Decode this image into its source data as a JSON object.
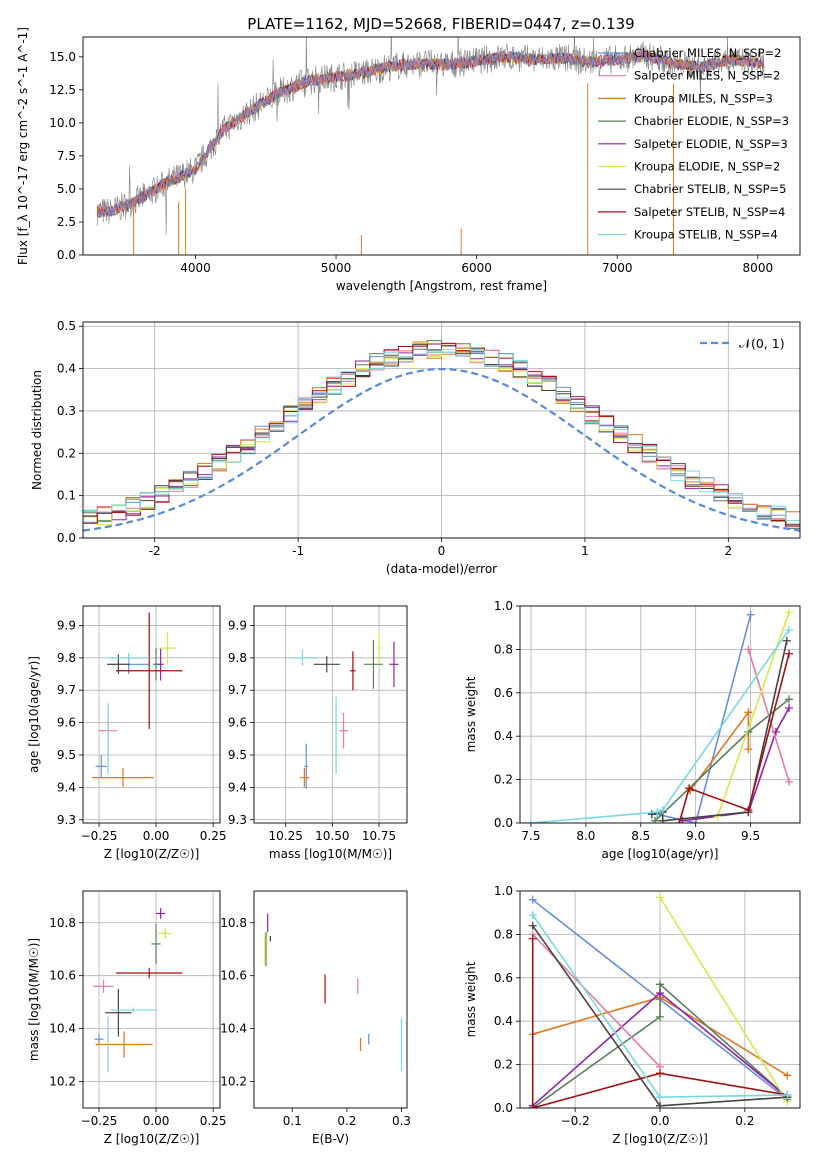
{
  "figure": {
    "title": "PLATE=1162, MJD=52668, FIBERID=0447, z=0.139"
  },
  "colors": [
    "#6a8fd6",
    "#e07820",
    "#5a7d5a",
    "#8e24aa",
    "#e879a8",
    "#d4e84a",
    "#444444",
    "#a01010",
    "#78d8e0"
  ],
  "chart_data": [
    {
      "id": "spectrum",
      "type": "line",
      "xlabel": "wavelength [Angstrom, rest frame]",
      "ylabel": "Flux [f_λ 10^-17 erg cm^-2 s^-1 A^-1]",
      "xlim": [
        3200,
        8300
      ],
      "ylim": [
        0,
        16.5
      ],
      "xticks": [
        4000,
        5000,
        6000,
        7000,
        8000
      ],
      "yticks": [
        0.0,
        2.5,
        5.0,
        7.5,
        10.0,
        12.5,
        15.0
      ],
      "ytick_labels": [
        "0.0",
        "2.5",
        "5.0",
        "7.5",
        "10.0",
        "12.5",
        "15.0"
      ],
      "grid": false,
      "legend": "top-right",
      "data_color": "#808080",
      "envelope": {
        "x": [
          3300,
          3400,
          3600,
          3800,
          4000,
          4200,
          4400,
          4600,
          4800,
          5000,
          5200,
          5400,
          5600,
          5800,
          6000,
          6200,
          6400,
          6600,
          6800,
          7000,
          7200,
          7400,
          7600,
          7800,
          8000,
          8050
        ],
        "y": [
          3.3,
          3.3,
          4.2,
          5.5,
          6.5,
          9.5,
          11.0,
          12.3,
          13.2,
          13.5,
          13.8,
          14.3,
          14.5,
          14.4,
          14.7,
          15.0,
          14.8,
          14.9,
          14.6,
          14.8,
          15.1,
          14.5,
          14.2,
          14.8,
          14.5,
          14.3
        ]
      },
      "legend_entries": [
        {
          "label": "Chabrier MILES, N_SSP=2",
          "color_index": 0
        },
        {
          "label": "Salpeter MILES, N_SSP=2",
          "color_index": 4
        },
        {
          "label": "Kroupa MILES, N_SSP=3",
          "color_index": 1
        },
        {
          "label": "Chabrier ELODIE, N_SSP=3",
          "color_index": 2
        },
        {
          "label": "Salpeter ELODIE, N_SSP=3",
          "color_index": 3
        },
        {
          "label": "Kroupa ELODIE, N_SSP=2",
          "color_index": 5
        },
        {
          "label": "Chabrier STELIB, N_SSP=5",
          "color_index": 6
        },
        {
          "label": "Salpeter STELIB, N_SSP=4",
          "color_index": 7
        },
        {
          "label": "Kroupa STELIB, N_SSP=4",
          "color_index": 8
        }
      ]
    },
    {
      "id": "residuals",
      "type": "line",
      "xlabel": "(data-model)/error",
      "ylabel": "Normed distribution",
      "xlim": [
        -2.5,
        2.5
      ],
      "ylim": [
        0,
        0.51
      ],
      "xticks": [
        -2,
        -1,
        0,
        1,
        2
      ],
      "yticks": [
        0.0,
        0.1,
        0.2,
        0.3,
        0.4,
        0.5
      ],
      "ytick_labels": [
        "0.0",
        "0.1",
        "0.2",
        "0.3",
        "0.4",
        "0.5"
      ],
      "grid": true,
      "legend": "top-right",
      "gaussian_label": "𝒩(0, 1)",
      "gaussian_color": "#5a8ad0"
    },
    {
      "id": "age_vs_Z",
      "type": "scatter",
      "xlabel": "Z [log10(Z/Z☉)]",
      "ylabel": "age [log10(age/yr)]",
      "xlim": [
        -0.32,
        0.28
      ],
      "ylim": [
        9.29,
        9.96
      ],
      "xticks": [
        -0.25,
        0.0,
        0.25
      ],
      "xtick_labels": [
        "−0.25",
        "0.00",
        "0.25"
      ],
      "yticks": [
        9.3,
        9.4,
        9.5,
        9.6,
        9.7,
        9.8,
        9.9
      ],
      "ytick_labels": [
        "9.3",
        "9.4",
        "9.5",
        "9.6",
        "9.7",
        "9.8",
        "9.9"
      ],
      "grid": true,
      "points": [
        {
          "c": 0,
          "x": -0.12,
          "y": 9.78,
          "dx": 0.18,
          "dy": 0.06
        },
        {
          "c": 0,
          "x": -0.24,
          "y": 9.465,
          "dx": 0.05,
          "dy": 0.07
        },
        {
          "c": 1,
          "x": -0.145,
          "y": 9.43,
          "dx": 0.27,
          "dy": 0.06
        },
        {
          "c": 2,
          "x": 0.0,
          "y": 9.78,
          "dx": 0.025,
          "dy": 0.1
        },
        {
          "c": 3,
          "x": 0.02,
          "y": 9.78,
          "dx": 0.025,
          "dy": 0.1
        },
        {
          "c": 4,
          "x": -0.21,
          "y": 9.575,
          "dx": 0.08,
          "dy": 0.15
        },
        {
          "c": 5,
          "x": 0.05,
          "y": 9.83,
          "dx": 0.08,
          "dy": 0.1
        },
        {
          "c": 6,
          "x": -0.165,
          "y": 9.78,
          "dx": 0.1,
          "dy": 0.06
        },
        {
          "c": 7,
          "x": -0.03,
          "y": 9.76,
          "dx": 0.29,
          "dy": 0.36
        },
        {
          "c": 8,
          "x": -0.12,
          "y": 9.8,
          "dx": 0.18,
          "dy": 0.03
        },
        {
          "c": 8,
          "x": -0.21,
          "y": 9.55,
          "dx": 0.002,
          "dy": 0.22
        }
      ]
    },
    {
      "id": "age_vs_mass",
      "type": "scatter",
      "xlabel": "mass [log10(M/M☉)]",
      "ylabel": "",
      "xlim": [
        10.08,
        10.9
      ],
      "ylim": [
        9.29,
        9.96
      ],
      "xticks": [
        10.25,
        10.5,
        10.75
      ],
      "xtick_labels": [
        "10.25",
        "10.50",
        "10.75"
      ],
      "yticks": [
        9.3,
        9.4,
        9.5,
        9.6,
        9.7,
        9.8,
        9.9
      ],
      "ytick_labels": [
        "9.3",
        "9.4",
        "9.5",
        "9.6",
        "9.7",
        "9.8",
        "9.9"
      ],
      "grid": true,
      "points": [
        {
          "c": 0,
          "x": 10.36,
          "y": 9.465,
          "dx": 0.02,
          "dy": 0.14
        },
        {
          "c": 1,
          "x": 10.35,
          "y": 9.43,
          "dx": 0.05,
          "dy": 0.06
        },
        {
          "c": 2,
          "x": 10.72,
          "y": 9.78,
          "dx": 0.1,
          "dy": 0.15
        },
        {
          "c": 3,
          "x": 10.83,
          "y": 9.78,
          "dx": 0.05,
          "dy": 0.14
        },
        {
          "c": 4,
          "x": 10.56,
          "y": 9.575,
          "dx": 0.05,
          "dy": 0.11
        },
        {
          "c": 5,
          "x": 10.75,
          "y": 9.83,
          "dx": 0.02,
          "dy": 0.1
        },
        {
          "c": 6,
          "x": 10.47,
          "y": 9.78,
          "dx": 0.14,
          "dy": 0.05
        },
        {
          "c": 7,
          "x": 10.61,
          "y": 9.76,
          "dx": 0.03,
          "dy": 0.12
        },
        {
          "c": 8,
          "x": 10.34,
          "y": 9.8,
          "dx": 0.16,
          "dy": 0.05
        },
        {
          "c": 8,
          "x": 10.52,
          "y": 9.56,
          "dx": 0.002,
          "dy": 0.24
        }
      ]
    },
    {
      "id": "weight_vs_age",
      "type": "line",
      "xlabel": "age [log10(age/yr)]",
      "ylabel": "mass weight",
      "xlim": [
        7.4,
        9.95
      ],
      "ylim": [
        0,
        1.0
      ],
      "xticks": [
        7.5,
        8.0,
        8.5,
        9.0,
        9.5
      ],
      "xtick_labels": [
        "7.5",
        "8.0",
        "8.5",
        "9.0",
        "9.5"
      ],
      "yticks": [
        0.0,
        0.2,
        0.4,
        0.6,
        0.8,
        1.0
      ],
      "ytick_labels": [
        "0.0",
        "0.2",
        "0.4",
        "0.6",
        "0.8",
        "1.0"
      ],
      "grid": true,
      "series": [
        {
          "c": 0,
          "x": [
            8.65,
            9.0,
            9.5
          ],
          "y": [
            0.04,
            0.0,
            0.96
          ]
        },
        {
          "c": 1,
          "x": [
            8.95,
            9.48,
            9.48
          ],
          "y": [
            0.15,
            0.51,
            0.34
          ]
        },
        {
          "c": 2,
          "x": [
            8.63,
            9.48,
            9.85
          ],
          "y": [
            0.01,
            0.42,
            0.57
          ]
        },
        {
          "c": 3,
          "x": [
            8.88,
            9.48,
            9.73,
            9.85
          ],
          "y": [
            0.01,
            0.05,
            0.42,
            0.53
          ]
        },
        {
          "c": 4,
          "x": [
            9.48,
            9.85
          ],
          "y": [
            0.8,
            0.19
          ]
        },
        {
          "c": 5,
          "x": [
            9.2,
            9.85
          ],
          "y": [
            0.03,
            0.97
          ]
        },
        {
          "c": 6,
          "x": [
            8.6,
            8.7,
            8.7,
            9.48,
            9.83
          ],
          "y": [
            0.04,
            0.05,
            0.01,
            0.05,
            0.84
          ]
        },
        {
          "c": 7,
          "x": [
            8.85,
            8.94,
            9.48,
            9.85
          ],
          "y": [
            0.0,
            0.16,
            0.06,
            0.78
          ]
        },
        {
          "c": 8,
          "x": [
            7.5,
            8.65,
            8.7,
            9.85
          ],
          "y": [
            0.0,
            0.05,
            0.06,
            0.89
          ]
        }
      ]
    },
    {
      "id": "mass_vs_Z",
      "type": "scatter",
      "xlabel": "Z [log10(Z/Z☉)]",
      "ylabel": "mass [log10(M/M☉)]",
      "xlim": [
        -0.32,
        0.28
      ],
      "ylim": [
        10.1,
        10.92
      ],
      "xticks": [
        -0.25,
        0.0,
        0.25
      ],
      "xtick_labels": [
        "−0.25",
        "0.00",
        "0.25"
      ],
      "yticks": [
        10.2,
        10.4,
        10.6,
        10.8
      ],
      "ytick_labels": [
        "10.2",
        "10.4",
        "10.6",
        "10.8"
      ],
      "grid": true,
      "points": [
        {
          "c": 0,
          "x": -0.25,
          "y": 10.36,
          "dx": 0.04,
          "dy": 0.04
        },
        {
          "c": 1,
          "x": -0.14,
          "y": 10.34,
          "dx": 0.25,
          "dy": 0.1
        },
        {
          "c": 2,
          "x": 0.0,
          "y": 10.72,
          "dx": 0.04,
          "dy": 0.15
        },
        {
          "c": 3,
          "x": 0.02,
          "y": 10.835,
          "dx": 0.04,
          "dy": 0.04
        },
        {
          "c": 4,
          "x": -0.23,
          "y": 10.56,
          "dx": 0.09,
          "dy": 0.05
        },
        {
          "c": 5,
          "x": 0.04,
          "y": 10.76,
          "dx": 0.06,
          "dy": 0.04
        },
        {
          "c": 6,
          "x": -0.165,
          "y": 10.46,
          "dx": 0.115,
          "dy": 0.18
        },
        {
          "c": 7,
          "x": -0.03,
          "y": 10.61,
          "dx": 0.29,
          "dy": 0.04
        },
        {
          "c": 8,
          "x": -0.1,
          "y": 10.47,
          "dx": 0.2,
          "dy": 0.02
        },
        {
          "c": 8,
          "x": -0.21,
          "y": 10.34,
          "dx": 0.002,
          "dy": 0.21
        }
      ]
    },
    {
      "id": "mass_vs_EBV",
      "type": "scatter",
      "xlabel": "E(B-V)",
      "ylabel": "",
      "xlim": [
        0.03,
        0.31
      ],
      "ylim": [
        10.1,
        10.92
      ],
      "xticks": [
        0.1,
        0.2,
        0.3
      ],
      "xtick_labels": [
        "0.1",
        "0.2",
        "0.3"
      ],
      "yticks": [
        10.2,
        10.4,
        10.6,
        10.8
      ],
      "ytick_labels": [
        "10.2",
        "10.4",
        "10.6",
        "10.8"
      ],
      "grid": false,
      "points": [
        {
          "c": 0,
          "x": 0.24,
          "y": 10.36,
          "dx": 0.0,
          "dy": 0.04
        },
        {
          "c": 1,
          "x": 0.225,
          "y": 10.34,
          "dx": 0.0,
          "dy": 0.05
        },
        {
          "c": 2,
          "x": 0.052,
          "y": 10.7,
          "dx": 0.0,
          "dy": 0.13
        },
        {
          "c": 3,
          "x": 0.055,
          "y": 10.8,
          "dx": 0.0,
          "dy": 0.07
        },
        {
          "c": 4,
          "x": 0.22,
          "y": 10.56,
          "dx": 0.0,
          "dy": 0.06
        },
        {
          "c": 5,
          "x": 0.05,
          "y": 10.7,
          "dx": 0.0,
          "dy": 0.12
        },
        {
          "c": 6,
          "x": 0.06,
          "y": 10.74,
          "dx": 0.0,
          "dy": 0.02
        },
        {
          "c": 7,
          "x": 0.16,
          "y": 10.55,
          "dx": 0.0,
          "dy": 0.11
        },
        {
          "c": 8,
          "x": 0.3,
          "y": 10.34,
          "dx": 0.0,
          "dy": 0.2
        }
      ]
    },
    {
      "id": "weight_vs_Z",
      "type": "line",
      "xlabel": "Z [log10(Z/Z☉)]",
      "ylabel": "mass weight",
      "xlim": [
        -0.33,
        0.33
      ],
      "ylim": [
        0,
        1.0
      ],
      "xticks": [
        -0.2,
        0.0,
        0.2
      ],
      "xtick_labels": [
        "−0.2",
        "0.0",
        "0.2"
      ],
      "yticks": [
        0.0,
        0.2,
        0.4,
        0.6,
        0.8,
        1.0
      ],
      "ytick_labels": [
        "0.0",
        "0.2",
        "0.4",
        "0.6",
        "0.8",
        "1.0"
      ],
      "grid": true,
      "series": [
        {
          "c": 0,
          "x": [
            -0.3,
            0.0,
            0.3
          ],
          "y": [
            0.96,
            0.5,
            0.04
          ]
        },
        {
          "c": 1,
          "x": [
            -0.3,
            0.0,
            0.3
          ],
          "y": [
            0.34,
            0.51,
            0.15
          ]
        },
        {
          "c": 2,
          "x": [
            -0.3,
            0.0,
            0.0,
            0.3
          ],
          "y": [
            0.0,
            0.42,
            0.57,
            0.05
          ]
        },
        {
          "c": 3,
          "x": [
            -0.3,
            0.0,
            0.3
          ],
          "y": [
            0.01,
            0.53,
            0.05
          ]
        },
        {
          "c": 4,
          "x": [
            -0.3,
            0.0
          ],
          "y": [
            0.8,
            0.19
          ]
        },
        {
          "c": 5,
          "x": [
            0.0,
            0.3
          ],
          "y": [
            0.97,
            0.03
          ]
        },
        {
          "c": 6,
          "x": [
            -0.3,
            0.0,
            0.3
          ],
          "y": [
            0.84,
            0.01,
            0.05
          ]
        },
        {
          "c": 7,
          "x": [
            -0.3,
            -0.3,
            0.0,
            0.3
          ],
          "y": [
            0.78,
            0.0,
            0.16,
            0.06
          ]
        },
        {
          "c": 8,
          "x": [
            -0.3,
            0.0,
            0.3
          ],
          "y": [
            0.89,
            0.05,
            0.06
          ]
        }
      ]
    }
  ]
}
